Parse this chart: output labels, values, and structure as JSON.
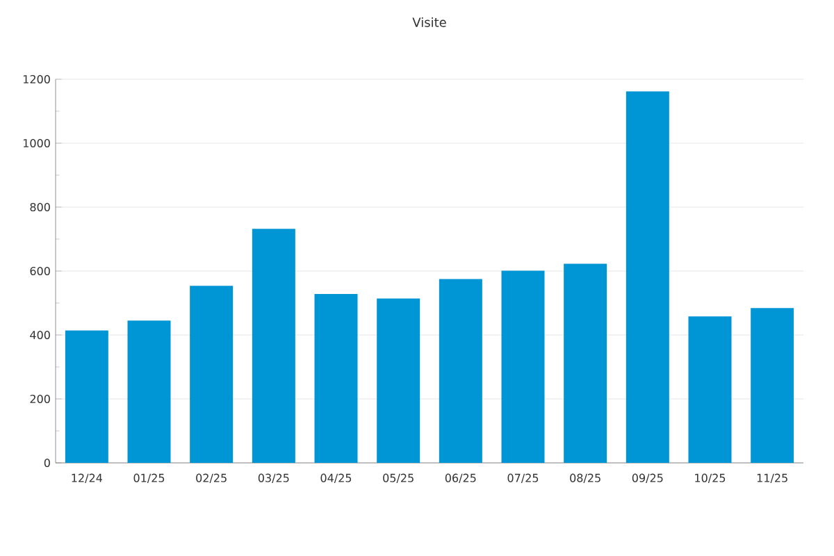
{
  "chart_data": {
    "type": "bar",
    "title": "Visite",
    "categories": [
      "12/24",
      "01/25",
      "02/25",
      "03/25",
      "04/25",
      "05/25",
      "06/25",
      "07/25",
      "08/25",
      "09/25",
      "10/25",
      "11/25"
    ],
    "values": [
      414,
      445,
      554,
      732,
      528,
      514,
      575,
      601,
      623,
      1162,
      458,
      484
    ],
    "color": "#0096d6",
    "ylim": [
      0,
      1200
    ],
    "yticks": [
      0,
      200,
      400,
      600,
      800,
      1000,
      1200
    ],
    "grid": "y"
  }
}
